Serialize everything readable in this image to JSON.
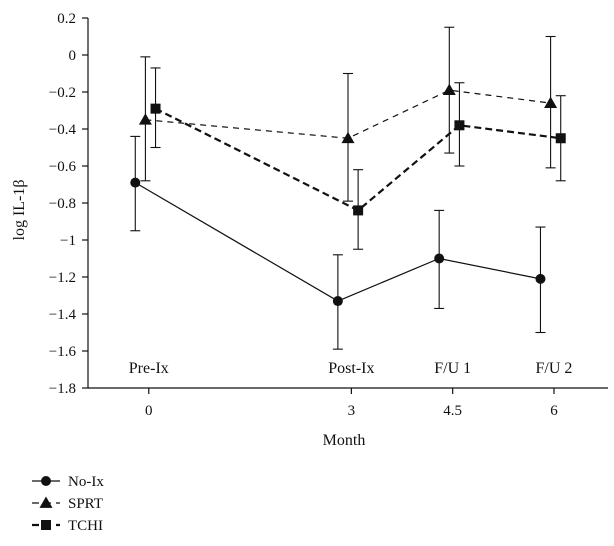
{
  "chart_data": {
    "type": "line",
    "ylabel": "log IL-1β",
    "xlabel": "Month",
    "ylim": [
      -1.8,
      0.2
    ],
    "yticks": [
      "0.2",
      "0",
      "-0.2",
      "-0.4",
      "-0.6",
      "-0.8",
      "-1",
      "-1.2",
      "-1.4",
      "-1.6",
      "-1.8"
    ],
    "yticks_display": [
      "0.2",
      "0",
      "−0.2",
      "−0.4",
      "−0.6",
      "−0.8",
      "−1",
      "−1.2",
      "−1.4",
      "−1.6",
      "−1.8"
    ],
    "xlim": [
      -0.9,
      6.8
    ],
    "x": [
      0,
      3,
      4.5,
      6
    ],
    "x_tick_labels": [
      "0",
      "3",
      "4.5",
      "6"
    ],
    "phase_labels": [
      "Pre-Ix",
      "Post-Ix",
      "F/U 1",
      "F/U 2"
    ],
    "grid": false,
    "legend_position": "bottom-left",
    "series": [
      {
        "name": "No-Ix",
        "marker": "circle",
        "line_style": "solid",
        "x_offset": -0.2,
        "values": [
          -0.69,
          -1.33,
          -1.1,
          -1.21
        ],
        "err_low": [
          -0.95,
          -1.59,
          -1.37,
          -1.5
        ],
        "err_high": [
          -0.44,
          -1.08,
          -0.84,
          -0.93
        ]
      },
      {
        "name": "SPRT",
        "marker": "triangle",
        "line_style": "dashed",
        "x_offset": -0.05,
        "values": [
          -0.35,
          -0.45,
          -0.19,
          -0.26
        ],
        "err_low": [
          -0.68,
          -0.79,
          -0.53,
          -0.61
        ],
        "err_high": [
          -0.01,
          -0.1,
          0.15,
          0.1
        ]
      },
      {
        "name": "TCHI",
        "marker": "square",
        "line_style": "dashed-bold",
        "x_offset": 0.1,
        "values": [
          -0.29,
          -0.84,
          -0.38,
          -0.45
        ],
        "err_low": [
          -0.5,
          -1.05,
          -0.6,
          -0.68
        ],
        "err_high": [
          -0.07,
          -0.62,
          -0.15,
          -0.22
        ]
      }
    ]
  }
}
